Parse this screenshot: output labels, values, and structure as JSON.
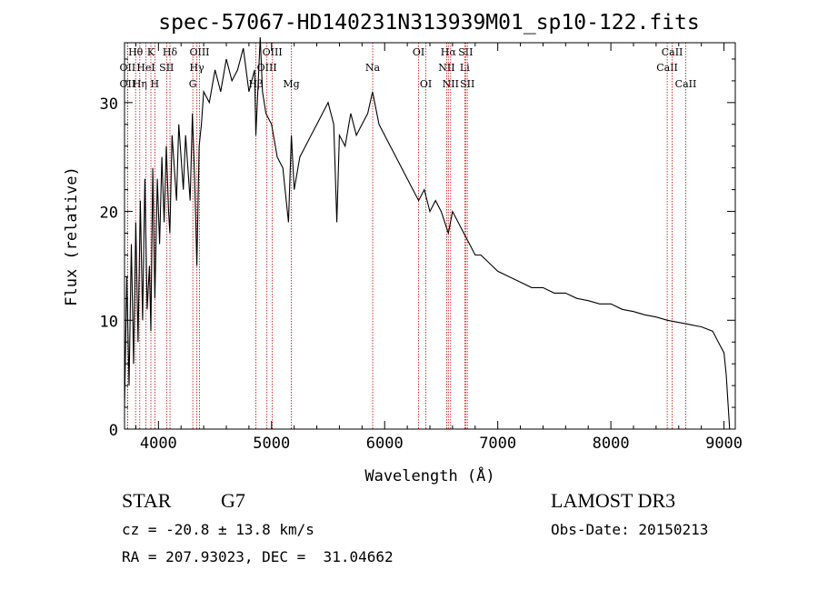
{
  "chart_data": {
    "type": "line",
    "title": "spec-57067-HD140231N313939M01_sp10-122.fits",
    "xlabel": "Wavelength (Å)",
    "ylabel": "Flux (relative)",
    "xlim": [
      3700,
      9100
    ],
    "ylim": [
      0,
      35.5
    ],
    "xticks": [
      4000,
      5000,
      6000,
      7000,
      8000,
      9000
    ],
    "yticks": [
      0,
      10,
      20,
      30
    ],
    "grid": false,
    "colors": {
      "line": "#000000",
      "marker_lines": "#cc0000"
    },
    "series": [
      {
        "x": [
          3700,
          3720,
          3740,
          3760,
          3780,
          3800,
          3820,
          3840,
          3860,
          3880,
          3900,
          3920,
          3933,
          3950,
          3968,
          3990,
          4010,
          4030,
          4050,
          4070,
          4090,
          4101,
          4120,
          4140,
          4160,
          4180,
          4200,
          4220,
          4240,
          4260,
          4280,
          4300,
          4320,
          4340,
          4360,
          4380,
          4400,
          4450,
          4500,
          4550,
          4600,
          4650,
          4700,
          4750,
          4800,
          4850,
          4861,
          4900,
          4920,
          4950,
          5000,
          5050,
          5100,
          5150,
          5175,
          5200,
          5250,
          5300,
          5350,
          5400,
          5450,
          5500,
          5550,
          5577,
          5600,
          5650,
          5700,
          5750,
          5800,
          5850,
          5893,
          5950,
          6000,
          6050,
          6100,
          6150,
          6200,
          6250,
          6300,
          6350,
          6400,
          6450,
          6500,
          6563,
          6600,
          6650,
          6700,
          6750,
          6800,
          6850,
          6900,
          6950,
          7000,
          7100,
          7200,
          7300,
          7400,
          7500,
          7600,
          7700,
          7800,
          7900,
          8000,
          8100,
          8200,
          8300,
          8400,
          8500,
          8600,
          8700,
          8800,
          8900,
          8950,
          9000,
          9020,
          9050
        ],
        "y": [
          2,
          14,
          4,
          17,
          6,
          19,
          8,
          21,
          10,
          23,
          11,
          15,
          9,
          24,
          12,
          23,
          17,
          25,
          19,
          26,
          20,
          18,
          27,
          24,
          21,
          28,
          25,
          22,
          27,
          24,
          21,
          29,
          23,
          15,
          26,
          28,
          31,
          30,
          33,
          31,
          34,
          32,
          33,
          35,
          31,
          33,
          27,
          36,
          31,
          29,
          28,
          25,
          24,
          19,
          27,
          22,
          25,
          26,
          27,
          28,
          29,
          30,
          28,
          19,
          27,
          26,
          29,
          27,
          28,
          29,
          31,
          28,
          27,
          26,
          25,
          24,
          23,
          22,
          21,
          22,
          20,
          21,
          20,
          18,
          20,
          19,
          18,
          17,
          16,
          16,
          15.5,
          15,
          14.5,
          14,
          13.5,
          13,
          13,
          12.5,
          12.5,
          12,
          11.8,
          11.5,
          11.5,
          11,
          10.8,
          10.5,
          10.3,
          10,
          9.8,
          9.6,
          9.4,
          9,
          8,
          7,
          5,
          0
        ]
      }
    ],
    "lines": [
      {
        "x": 3727,
        "label": "OII",
        "row": 2
      },
      {
        "x": 3727,
        "label": "OII",
        "row": 3
      },
      {
        "x": 3798,
        "label": "Hθ",
        "row": 1
      },
      {
        "x": 3835,
        "label": "Hη",
        "row": 3
      },
      {
        "x": 3889,
        "label": "HeI",
        "row": 2
      },
      {
        "x": 3933,
        "label": "K",
        "row": 1
      },
      {
        "x": 3968,
        "label": "H",
        "row": 3
      },
      {
        "x": 4072,
        "label": "SII",
        "row": 2
      },
      {
        "x": 4102,
        "label": "Hδ",
        "row": 1
      },
      {
        "x": 4304,
        "label": "G",
        "row": 3
      },
      {
        "x": 4340,
        "label": "Hγ",
        "row": 2
      },
      {
        "x": 4363,
        "label": "OIII",
        "row": 1
      },
      {
        "x": 4861,
        "label": "Hβ",
        "row": 3
      },
      {
        "x": 4959,
        "label": "OIII",
        "row": 2
      },
      {
        "x": 5007,
        "label": "OIII",
        "row": 1
      },
      {
        "x": 5175,
        "label": "Mg",
        "row": 3
      },
      {
        "x": 5894,
        "label": "Na",
        "row": 2
      },
      {
        "x": 6300,
        "label": "OI",
        "row": 1
      },
      {
        "x": 6364,
        "label": "OI",
        "row": 3
      },
      {
        "x": 6548,
        "label": "NII",
        "row": 2
      },
      {
        "x": 6563,
        "label": "Hα",
        "row": 1
      },
      {
        "x": 6583,
        "label": "NII",
        "row": 3
      },
      {
        "x": 6708,
        "label": "Li",
        "row": 2
      },
      {
        "x": 6716,
        "label": "SII",
        "row": 1
      },
      {
        "x": 6731,
        "label": "SII",
        "row": 3
      },
      {
        "x": 8498,
        "label": "CaII",
        "row": 2
      },
      {
        "x": 8542,
        "label": "CaII",
        "row": 1
      },
      {
        "x": 8662,
        "label": "CaII",
        "row": 3
      }
    ]
  },
  "info": {
    "class_type": "STAR",
    "subclass": "G7",
    "survey": "LAMOST DR3",
    "cz": "cz = -20.8 ± 13.8 km/s",
    "obs_date": "Obs-Date: 20150213",
    "coords": "RA = 207.93023, DEC =  31.04662"
  }
}
